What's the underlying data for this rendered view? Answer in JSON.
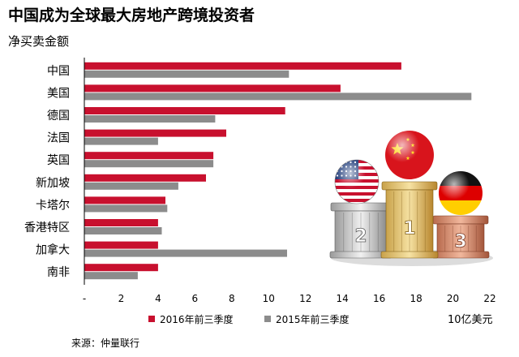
{
  "title": "中国成为全球最大房地产跨境投资者",
  "subtitle": "净买卖金额",
  "source": "来源：仲量联行",
  "unit": "10亿美元",
  "colors": {
    "red": "#c8102e",
    "gray": "#8c8c8c"
  },
  "illustration": {
    "type": "podium-with-flag-balls",
    "places": [
      {
        "rank": "1",
        "flag": "china"
      },
      {
        "rank": "2",
        "flag": "usa"
      },
      {
        "rank": "3",
        "flag": "germany"
      }
    ]
  },
  "chart_data": {
    "type": "bar",
    "orientation": "horizontal",
    "title": "中国成为全球最大房地产跨境投资者",
    "subtitle": "净买卖金额",
    "xlabel": "10亿美元",
    "ylabel": "",
    "xlim": [
      0,
      22
    ],
    "x_tick_labels": [
      "-",
      "2",
      "4",
      "6",
      "8",
      "10",
      "12",
      "14",
      "16",
      "18",
      "20",
      "22"
    ],
    "grid": false,
    "legend_position": "bottom",
    "categories": [
      "中国",
      "美国",
      "德国",
      "法国",
      "英国",
      "新加坡",
      "卡塔尔",
      "香港特区",
      "加拿大",
      "南非"
    ],
    "series": [
      {
        "name": "2016年前三季度",
        "color": "#c8102e",
        "values": [
          17.2,
          13.9,
          10.9,
          7.7,
          7.0,
          6.6,
          4.4,
          4.0,
          4.0,
          4.0
        ]
      },
      {
        "name": "2015年前三季度",
        "color": "#8c8c8c",
        "values": [
          11.1,
          21.0,
          7.1,
          4.0,
          7.0,
          5.1,
          4.5,
          4.2,
          11.0,
          2.9
        ]
      }
    ]
  }
}
